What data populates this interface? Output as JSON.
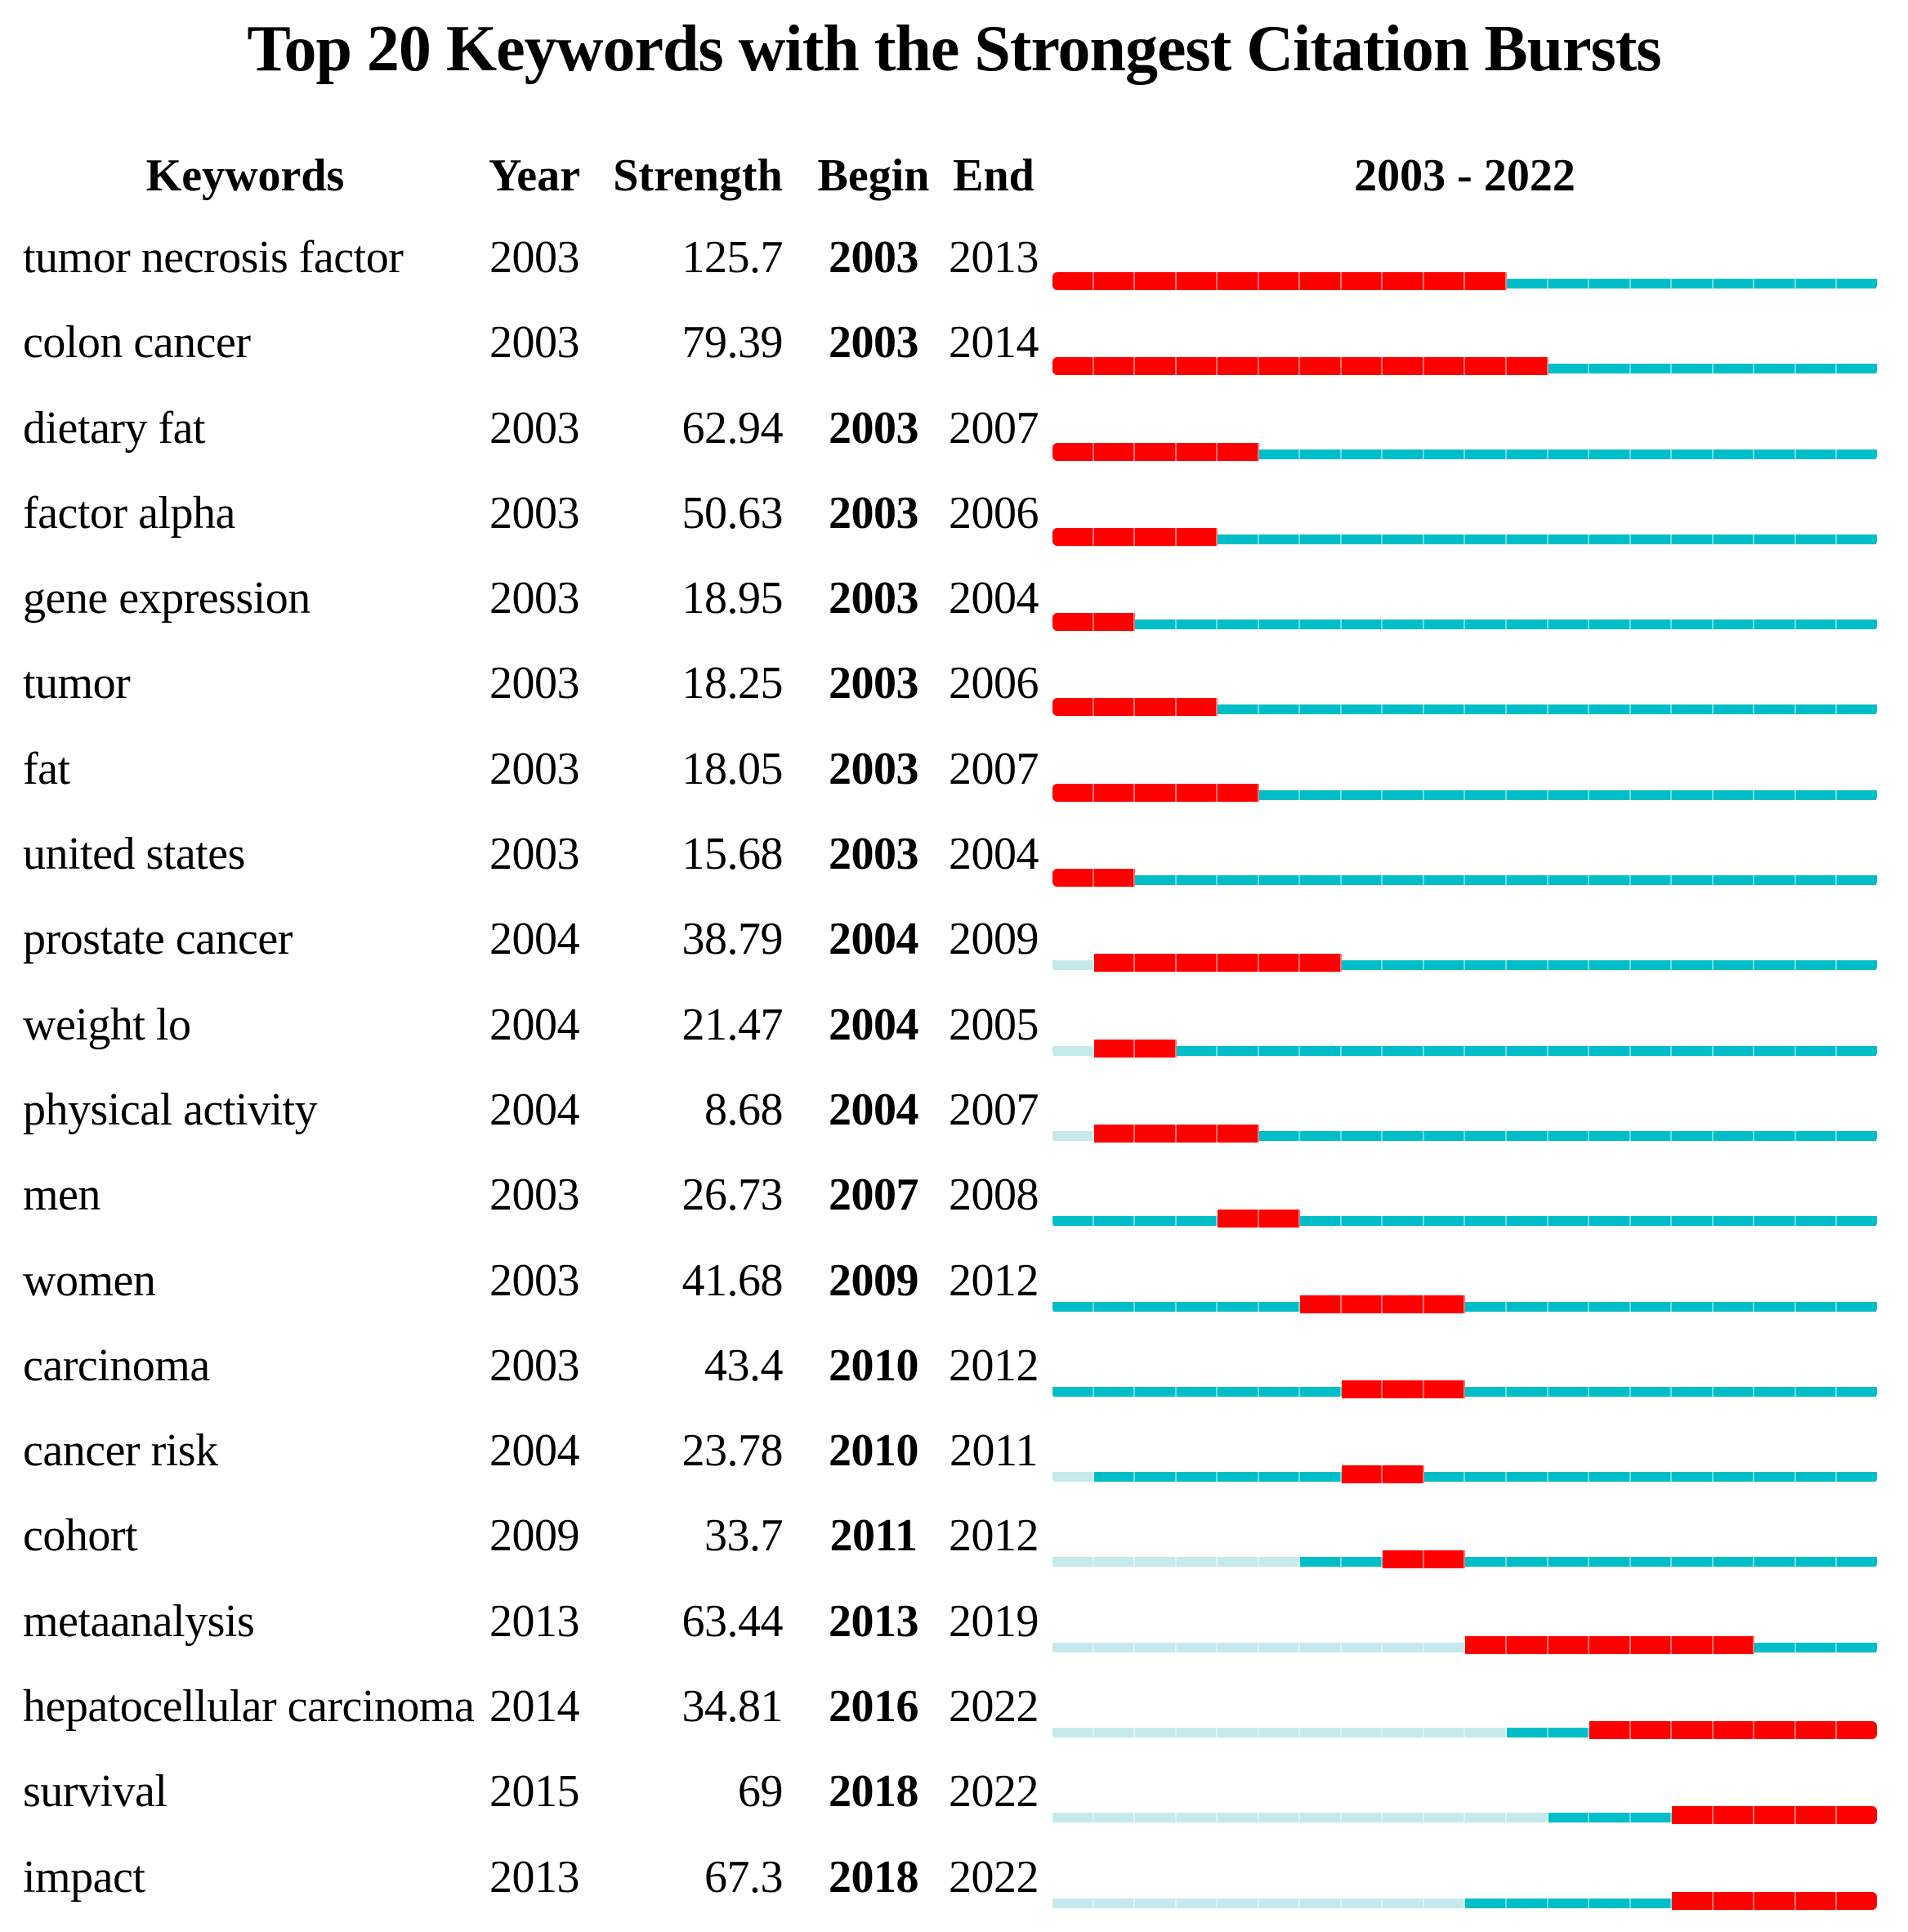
{
  "page": {
    "title": "Top 20 Keywords with the Strongest Citation Bursts"
  },
  "table": {
    "headers": {
      "keyword": "Keywords",
      "year": "Year",
      "strength": "Strength",
      "begin": "Begin",
      "end": "End",
      "timeline": "2003 - 2022"
    }
  },
  "chart_data": {
    "type": "table",
    "title": "Top 20 Keywords with the Strongest Citation Bursts",
    "description": "Citation burst timeline chart; each row shows a keyword's burst period (red) within 2003-2022; teal = years keyword active, pale = years before first appearance",
    "timeline": {
      "start_year": 2003,
      "end_year": 2022,
      "label": "2003 - 2022"
    },
    "colors": {
      "burst": "#ff0000",
      "active": "#00bec8",
      "pale": "#c6e9ec",
      "text": "#000000"
    },
    "rows": [
      {
        "keyword": "tumor necrosis factor",
        "year": "2003",
        "strength": "125.7",
        "begin": "2003",
        "end": "2013"
      },
      {
        "keyword": "colon cancer",
        "year": "2003",
        "strength": "79.39",
        "begin": "2003",
        "end": "2014"
      },
      {
        "keyword": "dietary fat",
        "year": "2003",
        "strength": "62.94",
        "begin": "2003",
        "end": "2007"
      },
      {
        "keyword": "factor alpha",
        "year": "2003",
        "strength": "50.63",
        "begin": "2003",
        "end": "2006"
      },
      {
        "keyword": "gene expression",
        "year": "2003",
        "strength": "18.95",
        "begin": "2003",
        "end": "2004"
      },
      {
        "keyword": "tumor",
        "year": "2003",
        "strength": "18.25",
        "begin": "2003",
        "end": "2006"
      },
      {
        "keyword": "fat",
        "year": "2003",
        "strength": "18.05",
        "begin": "2003",
        "end": "2007"
      },
      {
        "keyword": "united states",
        "year": "2003",
        "strength": "15.68",
        "begin": "2003",
        "end": "2004"
      },
      {
        "keyword": "prostate cancer",
        "year": "2004",
        "strength": "38.79",
        "begin": "2004",
        "end": "2009"
      },
      {
        "keyword": "weight lo",
        "year": "2004",
        "strength": "21.47",
        "begin": "2004",
        "end": "2005"
      },
      {
        "keyword": "physical activity",
        "year": "2004",
        "strength": "8.68",
        "begin": "2004",
        "end": "2007"
      },
      {
        "keyword": "men",
        "year": "2003",
        "strength": "26.73",
        "begin": "2007",
        "end": "2008"
      },
      {
        "keyword": "women",
        "year": "2003",
        "strength": "41.68",
        "begin": "2009",
        "end": "2012"
      },
      {
        "keyword": "carcinoma",
        "year": "2003",
        "strength": "43.4",
        "begin": "2010",
        "end": "2012"
      },
      {
        "keyword": "cancer risk",
        "year": "2004",
        "strength": "23.78",
        "begin": "2010",
        "end": "2011"
      },
      {
        "keyword": "cohort",
        "year": "2009",
        "strength": "33.7",
        "begin": "2011",
        "end": "2012"
      },
      {
        "keyword": "metaanalysis",
        "year": "2013",
        "strength": "63.44",
        "begin": "2013",
        "end": "2019"
      },
      {
        "keyword": "hepatocellular carcinoma",
        "year": "2014",
        "strength": "34.81",
        "begin": "2016",
        "end": "2022"
      },
      {
        "keyword": "survival",
        "year": "2015",
        "strength": "69",
        "begin": "2018",
        "end": "2022"
      },
      {
        "keyword": "impact",
        "year": "2013",
        "strength": "67.3",
        "begin": "2018",
        "end": "2022"
      }
    ]
  }
}
